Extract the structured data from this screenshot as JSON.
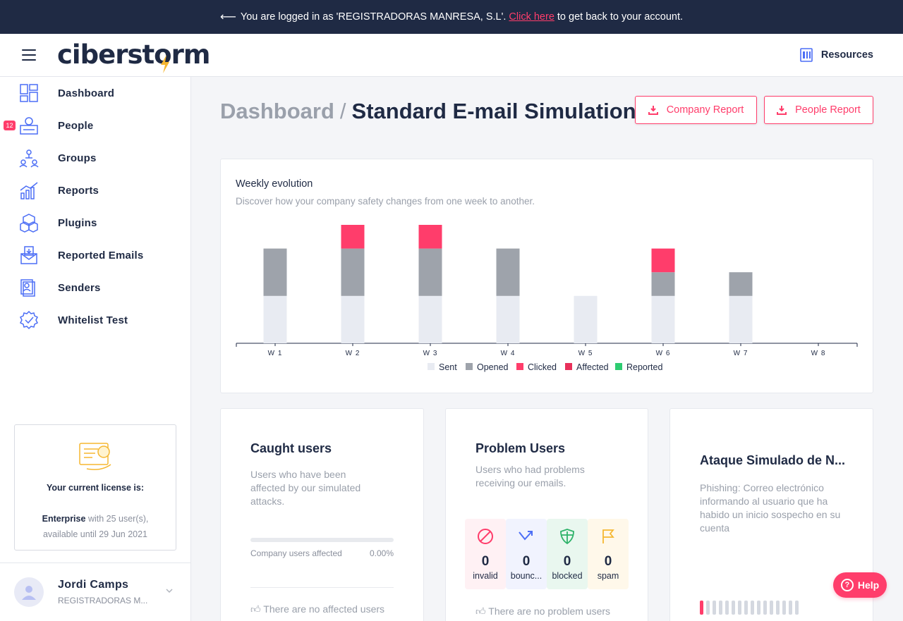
{
  "banner": {
    "prefix": "You are logged in as 'REGISTRADORAS MANRESA, S.L'.",
    "link": "Click here",
    "suffix": "to get back to your account."
  },
  "header": {
    "logo": "ciberstorm",
    "resources_label": "Resources"
  },
  "sidebar": {
    "items": [
      {
        "label": "Dashboard",
        "icon": "dashboard-icon"
      },
      {
        "label": "People",
        "icon": "people-icon",
        "badge": "12"
      },
      {
        "label": "Groups",
        "icon": "groups-icon"
      },
      {
        "label": "Reports",
        "icon": "reports-icon"
      },
      {
        "label": "Plugins",
        "icon": "plugins-icon"
      },
      {
        "label": "Reported Emails",
        "icon": "reported-emails-icon"
      },
      {
        "label": "Senders",
        "icon": "senders-icon"
      },
      {
        "label": "Whitelist Test",
        "icon": "whitelist-test-icon"
      }
    ],
    "license": {
      "title": "Your current license is:",
      "plan": "Enterprise",
      "plan_detail": "with 25 user(s),",
      "available": "available until 29 Jun 2021"
    },
    "user": {
      "name": "Jordi Camps",
      "company": "REGISTRADORAS M..."
    }
  },
  "main": {
    "breadcrumb_root": "Dashboard",
    "breadcrumb_sep": "/",
    "title": "Standard E-mail Simulation",
    "company_report_label": "Company Report",
    "people_report_label": "People Report"
  },
  "weekly": {
    "title": "Weekly evolution",
    "subtitle": "Discover how your company safety changes from one week to another."
  },
  "chart_data": {
    "type": "bar",
    "stacked": true,
    "categories": [
      "W 1",
      "W 2",
      "W 3",
      "W 4",
      "W 5",
      "W 6",
      "W 7",
      "W 8"
    ],
    "series": [
      {
        "name": "Sent",
        "color": "#e8ebf2",
        "values": [
          2,
          2,
          2,
          2,
          2,
          2,
          2,
          0
        ]
      },
      {
        "name": "Opened",
        "color": "#9ea3ab",
        "values": [
          2,
          2,
          2,
          2,
          0,
          1,
          1,
          0
        ]
      },
      {
        "name": "Clicked",
        "color": "#ff3d6b",
        "values": [
          0,
          1,
          1,
          0,
          0,
          1,
          0,
          0
        ]
      },
      {
        "name": "Affected",
        "color": "#e8305a",
        "values": [
          0,
          0,
          0,
          0,
          0,
          0,
          0,
          0
        ]
      },
      {
        "name": "Reported",
        "color": "#2ecc71",
        "values": [
          0,
          0,
          0,
          0,
          0,
          0,
          0,
          0
        ]
      }
    ],
    "ylim": [
      0,
      5
    ],
    "legend": "bottom"
  },
  "caught": {
    "title": "Caught users",
    "desc": "Users who have been affected by our simulated attacks.",
    "progress_label": "Company users affected",
    "progress_value": "0.00%",
    "progress_fraction": 0,
    "empty": "There are no affected users"
  },
  "problem": {
    "title": "Problem Users",
    "desc": "Users who had problems receiving our emails.",
    "stats": [
      {
        "label": "invalid",
        "value": "0",
        "icon": "invalid-icon",
        "color": "#ff3d6b",
        "bg": "#fff1f4"
      },
      {
        "label": "bounc...",
        "value": "0",
        "icon": "bounce-icon",
        "color": "#4c6ef5",
        "bg": "#f1f3fe"
      },
      {
        "label": "blocked",
        "value": "0",
        "icon": "shield-icon",
        "color": "#2fb36a",
        "bg": "#e9f7ef"
      },
      {
        "label": "spam",
        "value": "0",
        "icon": "flag-icon",
        "color": "#f5b731",
        "bg": "#fff8ea"
      }
    ],
    "empty": "There are no problem users"
  },
  "attack": {
    "title": "Ataque Simulado de N...",
    "desc": "Phishing: Correo electrónico informando al usuario que ha habido un inicio sospecho en su cuenta",
    "step_total": 16,
    "step_current": 1
  },
  "help_label": "Help"
}
